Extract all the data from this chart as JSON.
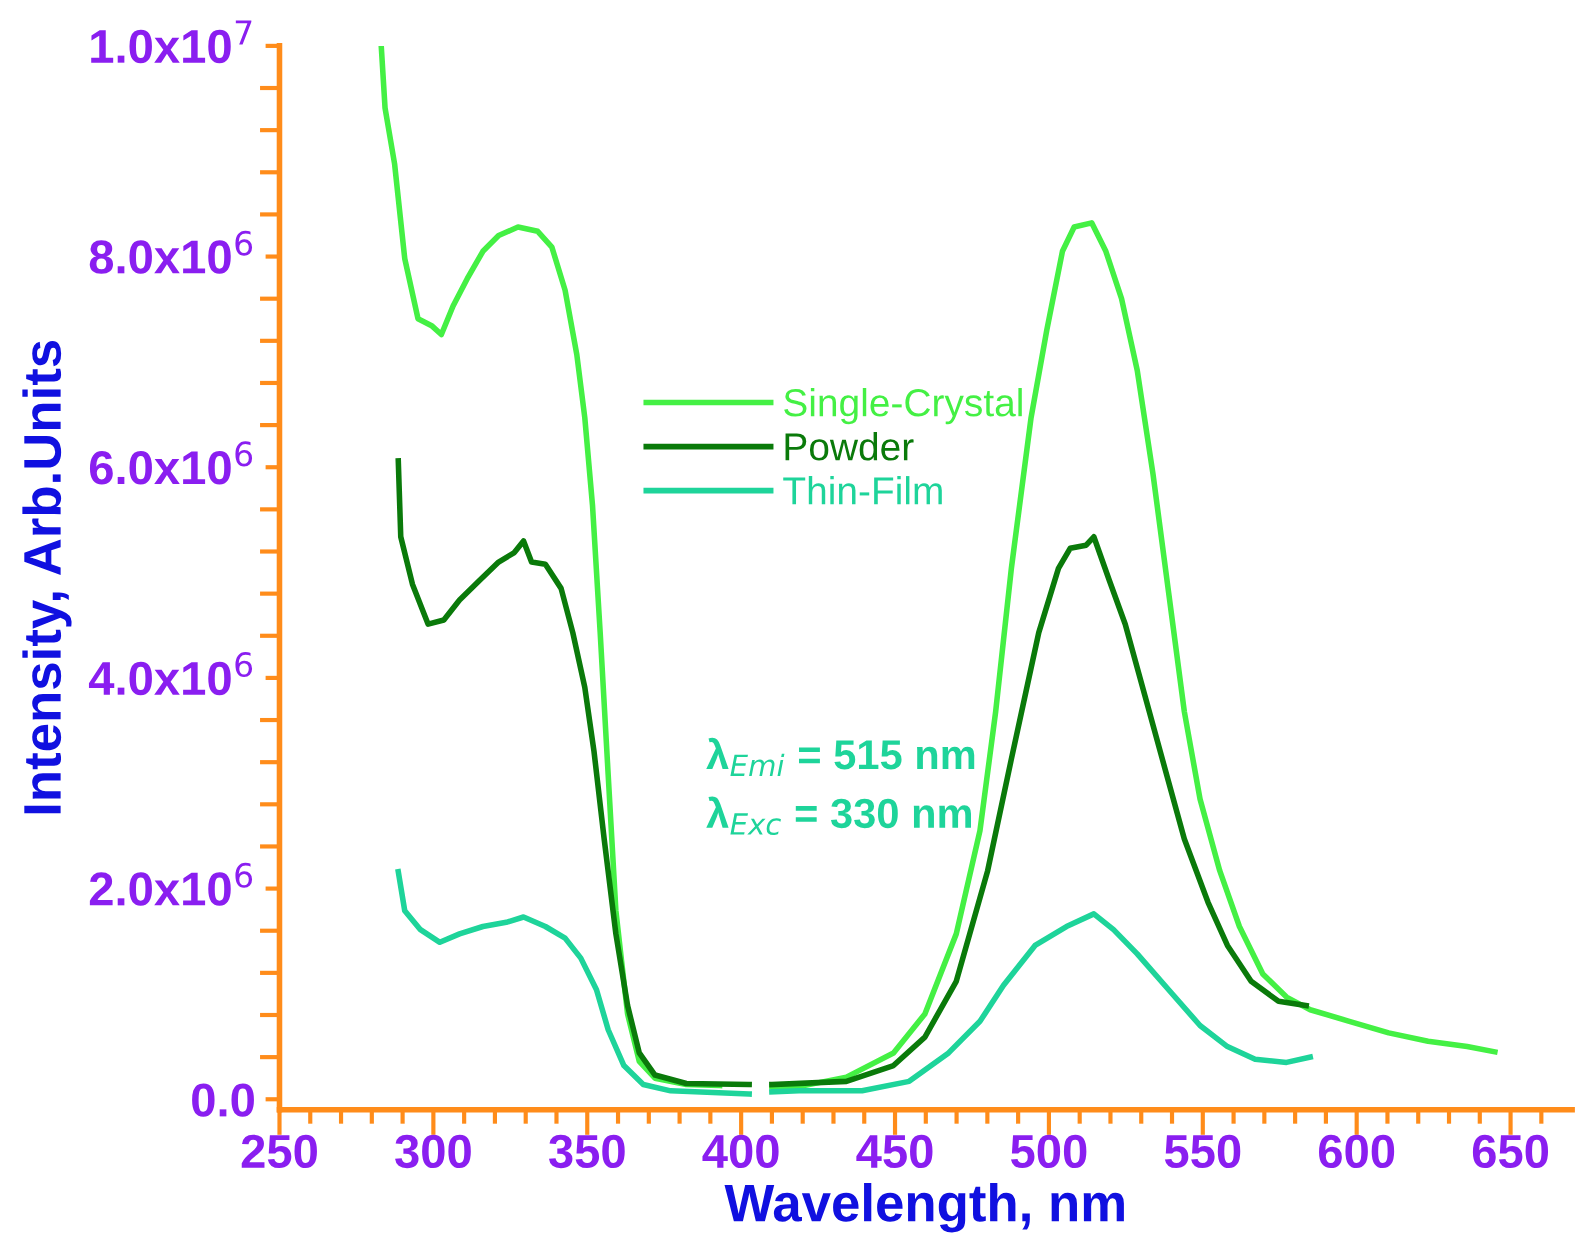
{
  "chart_data": {
    "type": "line",
    "xlabel": "Wavelength, nm",
    "ylabel": "Intensity, Arb.Units",
    "xlim": [
      250,
      670
    ],
    "ylim": [
      -100000,
      10000000
    ],
    "xticks": [
      250,
      {
        "value": 260,
        "label": null
      },
      {
        "value": 270,
        "label": null
      },
      {
        "value": 280,
        "label": null
      },
      {
        "value": 290,
        "label": null
      },
      300,
      {
        "value": 310,
        "label": null
      },
      {
        "value": 320,
        "label": null
      },
      {
        "value": 330,
        "label": null
      },
      {
        "value": 340,
        "label": null
      },
      350,
      {
        "value": 360,
        "label": null
      },
      {
        "value": 370,
        "label": null
      },
      {
        "value": 380,
        "label": null
      },
      {
        "value": 390,
        "label": null
      },
      400,
      {
        "value": 410,
        "label": null
      },
      {
        "value": 420,
        "label": null
      },
      {
        "value": 430,
        "label": null
      },
      {
        "value": 440,
        "label": null
      },
      450,
      {
        "value": 460,
        "label": null
      },
      {
        "value": 470,
        "label": null
      },
      {
        "value": 480,
        "label": null
      },
      {
        "value": 490,
        "label": null
      },
      500,
      {
        "value": 510,
        "label": null
      },
      {
        "value": 520,
        "label": null
      },
      {
        "value": 530,
        "label": null
      },
      {
        "value": 540,
        "label": null
      },
      550,
      {
        "value": 560,
        "label": null
      },
      {
        "value": 570,
        "label": null
      },
      {
        "value": 580,
        "label": null
      },
      {
        "value": 590,
        "label": null
      },
      600,
      {
        "value": 610,
        "label": null
      },
      {
        "value": 620,
        "label": null
      },
      {
        "value": 630,
        "label": null
      },
      {
        "value": 640,
        "label": null
      },
      650,
      {
        "value": 660,
        "label": null
      }
    ],
    "yticks": [
      {
        "value": 0,
        "label": "0.0"
      },
      {
        "value": 400000,
        "label": null
      },
      {
        "value": 800000,
        "label": null
      },
      {
        "value": 1200000,
        "label": null
      },
      {
        "value": 1600000,
        "label": null
      },
      {
        "value": 2000000,
        "label": "2.0x10$^{6}$"
      },
      {
        "value": 2400000,
        "label": null
      },
      {
        "value": 2800000,
        "label": null
      },
      {
        "value": 3200000,
        "label": null
      },
      {
        "value": 3600000,
        "label": null
      },
      {
        "value": 4000000,
        "label": "4.0x10$^{6}$"
      },
      {
        "value": 4400000,
        "label": null
      },
      {
        "value": 4800000,
        "label": null
      },
      {
        "value": 5200000,
        "label": null
      },
      {
        "value": 5600000,
        "label": null
      },
      {
        "value": 6000000,
        "label": "6.0x10$^{6}$"
      },
      {
        "value": 6400000,
        "label": null
      },
      {
        "value": 6800000,
        "label": null
      },
      {
        "value": 7200000,
        "label": null
      },
      {
        "value": 7600000,
        "label": null
      },
      {
        "value": 8000000,
        "label": "8.0x10$^{6}$"
      },
      {
        "value": 8400000,
        "label": null
      },
      {
        "value": 8800000,
        "label": null
      },
      {
        "value": 9200000,
        "label": null
      },
      {
        "value": 9600000,
        "label": null
      },
      {
        "value": 10000000,
        "label": "1.0x10$^{7}$"
      }
    ],
    "grid": false,
    "legend": "center",
    "marker": "none",
    "line_style": "solid",
    "annotations": [
      "λ$_{Emi}$ = 515 nm",
      "λ$_{Exc}$ = 330 nm"
    ],
    "series": [
      {
        "name": "Single-Crystal",
        "color": "#44f044",
        "x": [
          283.1,
          284.3,
          287.4,
          290.7,
          295,
          299.6,
          302.6,
          306.4,
          311,
          316.1,
          321.2,
          327.5,
          333.9,
          338.5,
          342.8,
          346.6,
          349.2,
          351.7,
          354.2,
          356.8,
          359.3,
          363.1,
          366.9,
          372,
          382.2,
          393,
          406,
          410,
          418.8,
          434.2,
          449.5,
          459.7,
          469.9,
          477.6,
          482.7,
          487.8,
          494.2,
          499.3,
          504.4,
          508.2,
          513.9,
          518.5,
          523.6,
          528.7,
          533.8,
          538.9,
          544,
          549.1,
          555.5,
          561.9,
          569.5,
          577.2,
          584.9,
          597.6,
          610.4,
          623.2,
          635.9,
          644.9
        ],
        "values": [
          9980000,
          9410000,
          8880000,
          7980000,
          7410000,
          7340000,
          7260000,
          7530000,
          7790000,
          8050000,
          8200000,
          8280000,
          8240000,
          8090000,
          7680000,
          7070000,
          6470000,
          5640000,
          4430000,
          3080000,
          1790000,
          810000,
          360000,
          200000,
          140000,
          130000,
          null,
          120000,
          120000,
          210000,
          440000,
          810000,
          1570000,
          2550000,
          3680000,
          5040000,
          6470000,
          7300000,
          8050000,
          8280000,
          8320000,
          8050000,
          7600000,
          6920000,
          5940000,
          4810000,
          3680000,
          2850000,
          2170000,
          1640000,
          1190000,
          970000,
          850000,
          740000,
          630000,
          550000,
          500000,
          450000
        ]
      },
      {
        "name": "Powder",
        "color": "#0a7a0a",
        "x": [
          288.6,
          289.4,
          293.2,
          298.3,
          303.4,
          308.5,
          314.8,
          321.2,
          326.3,
          329.3,
          331.9,
          336.4,
          341.5,
          345.3,
          349.2,
          352.2,
          355.5,
          359.3,
          363.1,
          366.9,
          372,
          382.2,
          402.6,
          406,
          410,
          434.2,
          449.5,
          459.7,
          469.9,
          480.1,
          487.8,
          496.7,
          503.1,
          506.9,
          512.1,
          514.6,
          519.7,
          524.8,
          531.2,
          537.6,
          544,
          551.7,
          558,
          565.7,
          574.6,
          583.6
        ],
        "values": [
          6060000,
          5340000,
          4890000,
          4510000,
          4550000,
          4740000,
          4920000,
          5100000,
          5190000,
          5300000,
          5100000,
          5080000,
          4850000,
          4430000,
          3910000,
          3300000,
          2470000,
          1570000,
          890000,
          440000,
          230000,
          150000,
          140000,
          null,
          140000,
          170000,
          320000,
          590000,
          1120000,
          2170000,
          3230000,
          4430000,
          5040000,
          5230000,
          5260000,
          5340000,
          4920000,
          4510000,
          3830000,
          3150000,
          2470000,
          1870000,
          1460000,
          1120000,
          930000,
          890000
        ]
      },
      {
        "name": "Thin-Film",
        "color": "#1ed49a",
        "x": [
          288.6,
          290.7,
          295.8,
          302.1,
          308.5,
          316.1,
          323.7,
          329.3,
          336.4,
          342.8,
          347.9,
          353,
          356.8,
          361.9,
          368.2,
          377.1,
          402.6,
          406,
          410,
          418.8,
          439.3,
          454.6,
          467.4,
          477.6,
          485.2,
          495.5,
          505.7,
          514.6,
          521,
          528.7,
          538.9,
          549.1,
          558,
          567,
          577.2,
          584.9
        ],
        "values": [
          2160000,
          1790000,
          1610000,
          1490000,
          1570000,
          1640000,
          1680000,
          1730000,
          1640000,
          1530000,
          1340000,
          1040000,
          660000,
          320000,
          140000,
          80000,
          50000,
          null,
          70000,
          80000,
          80000,
          170000,
          440000,
          740000,
          1080000,
          1460000,
          1640000,
          1760000,
          1610000,
          1380000,
          1040000,
          700000,
          500000,
          380000,
          350000,
          400000
        ]
      }
    ]
  }
}
